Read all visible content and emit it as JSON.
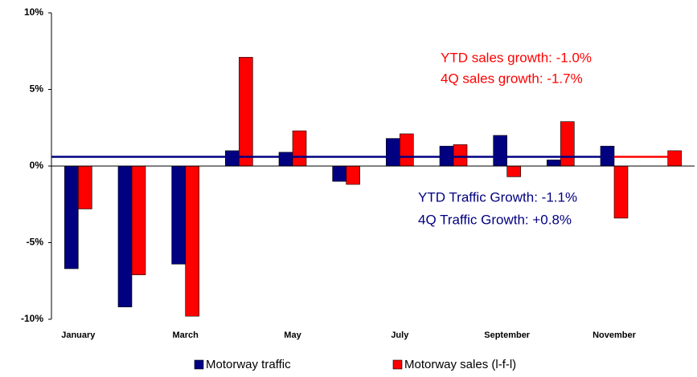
{
  "chart_data": {
    "type": "bar",
    "categories": [
      "January",
      null,
      "March",
      null,
      "May",
      null,
      "July",
      null,
      "September",
      null,
      "November",
      null
    ],
    "series": [
      {
        "name": "Motorway traffic",
        "color": "#000080",
        "values": [
          -6.7,
          -9.2,
          -6.4,
          1.0,
          0.9,
          -1.0,
          1.8,
          1.3,
          2.0,
          0.4,
          1.3,
          null
        ]
      },
      {
        "name": "Motorway sales (l-f-l)",
        "color": "#ff0000",
        "values": [
          -2.8,
          -7.1,
          -9.8,
          7.1,
          2.3,
          -1.2,
          2.1,
          1.4,
          -0.7,
          2.9,
          -3.4,
          1.0
        ]
      }
    ],
    "avg_lines": [
      {
        "color": "#000080",
        "value": 0.6,
        "span": [
          -0.5,
          10
        ]
      },
      {
        "color": "#ff0000",
        "value": 0.6,
        "span": [
          10,
          11
        ]
      }
    ],
    "annotations": [
      {
        "text": "YTD sales growth: -1.0%",
        "color": "#ff0000"
      },
      {
        "text": "4Q sales growth: -1.7%",
        "color": "#ff0000"
      },
      {
        "text": "YTD Traffic Growth: -1.1%",
        "color": "#000080"
      },
      {
        "text": "4Q Traffic Growth: +0.8%",
        "color": "#000080"
      }
    ],
    "ylim": [
      -10,
      10
    ],
    "yticks": [
      {
        "value": 10,
        "label": "10%"
      },
      {
        "value": 5,
        "label": "5%"
      },
      {
        "value": 0,
        "label": "0%"
      },
      {
        "value": -5,
        "label": "-5%"
      },
      {
        "value": -10,
        "label": "-10%"
      }
    ],
    "grid": false,
    "legend": "bottom"
  }
}
